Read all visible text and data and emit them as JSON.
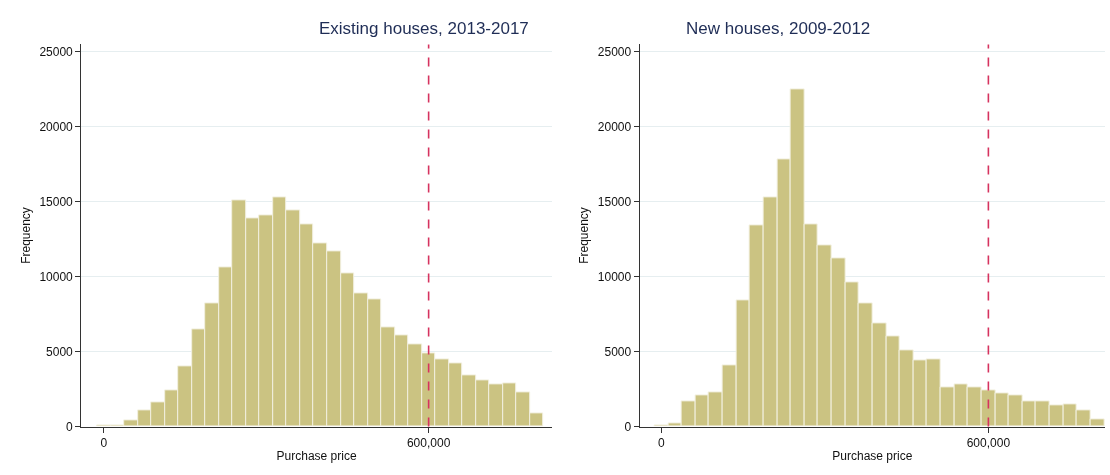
{
  "chart_data": [
    {
      "type": "histogram",
      "title": "Existing houses, 2013-2017",
      "xlabel": "Purchase price",
      "ylabel": "Frequency",
      "color": "#cbc382",
      "grid": "y",
      "bins": [
        -12500,
        12500,
        37500,
        62500,
        87500,
        112500,
        137500,
        162500,
        187500,
        212500,
        237500,
        262500,
        287500,
        312500,
        337500,
        362500,
        387500,
        412500,
        437500,
        462500,
        487500,
        512500,
        537500,
        562500,
        587500,
        612500,
        637500,
        662500,
        687500,
        712500,
        737500,
        762500,
        787500,
        812500
      ],
      "values": [
        100,
        100,
        400,
        1100,
        1600,
        2400,
        4000,
        6500,
        8200,
        10600,
        15100,
        13900,
        14100,
        15300,
        14400,
        13500,
        12200,
        11700,
        10200,
        8900,
        8500,
        6600,
        6100,
        5500,
        4900,
        4500,
        4200,
        3400,
        3100,
        2800,
        2900,
        2300,
        900
      ],
      "xlim": [
        -42000,
        828000
      ],
      "xticks": [
        0,
        {
          "value": 600000,
          "label": "600,000"
        }
      ],
      "ylim": [
        0,
        25500
      ],
      "yticks": [
        0,
        5000,
        10000,
        15000,
        20000,
        25000
      ],
      "ref_lines": [
        {
          "axis": "x",
          "value": 600000,
          "color": "#d6335f",
          "line_style": "dashed"
        }
      ]
    },
    {
      "type": "histogram",
      "title": "New houses, 2009-2012",
      "xlabel": "Purchase price",
      "ylabel": "Frequency",
      "color": "#cbc382",
      "grid": "y",
      "bins": [
        -12500,
        12500,
        37500,
        62500,
        87500,
        112500,
        137500,
        162500,
        187500,
        212500,
        237500,
        262500,
        287500,
        312500,
        337500,
        362500,
        387500,
        412500,
        437500,
        462500,
        487500,
        512500,
        537500,
        562500,
        587500,
        612500,
        637500,
        662500,
        687500,
        712500,
        737500,
        762500,
        787500,
        812500
      ],
      "values": [
        50,
        200,
        1700,
        2100,
        2300,
        4100,
        8400,
        13400,
        15300,
        17800,
        22500,
        13500,
        12100,
        11200,
        9600,
        8200,
        6900,
        6000,
        5100,
        4400,
        4500,
        2600,
        2800,
        2600,
        2400,
        2200,
        2100,
        1700,
        1700,
        1400,
        1500,
        1100,
        500
      ],
      "xlim": [
        -40000,
        814000
      ],
      "xticks": [
        0,
        {
          "value": 600000,
          "label": "600,000"
        }
      ],
      "ylim": [
        0,
        25500
      ],
      "yticks": [
        0,
        5000,
        10000,
        15000,
        20000,
        25000
      ],
      "ref_lines": [
        {
          "axis": "x",
          "value": 600000,
          "color": "#d6335f",
          "line_style": "dashed"
        }
      ]
    }
  ]
}
